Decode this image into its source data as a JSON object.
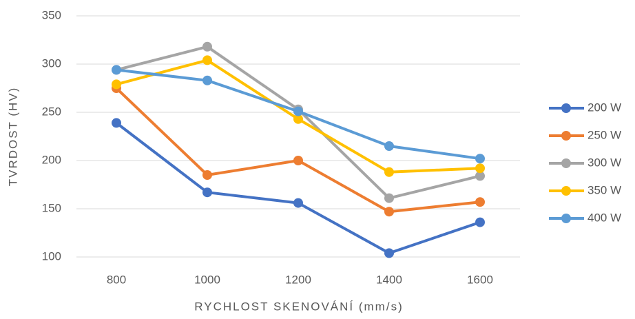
{
  "chart_data": {
    "type": "line",
    "x_label": "RYCHLOST SKENOVÁNÍ (mm/s)",
    "y_label": "TVRDOST (HV)",
    "categories": [
      "800",
      "1000",
      "1200",
      "1400",
      "1600"
    ],
    "series": [
      {
        "name": "200 W",
        "color": "#4472c4",
        "values": [
          239,
          167,
          156,
          104,
          136
        ]
      },
      {
        "name": "250 W",
        "color": "#ed7d31",
        "values": [
          275,
          185,
          200,
          147,
          157
        ]
      },
      {
        "name": "300 W",
        "color": "#a5a5a5",
        "values": [
          294,
          318,
          253,
          161,
          184
        ]
      },
      {
        "name": "350 W",
        "color": "#ffc000",
        "values": [
          279,
          304,
          243,
          188,
          192
        ]
      },
      {
        "name": "400 W",
        "color": "#5b9bd5",
        "values": [
          294,
          283,
          251,
          215,
          202
        ]
      }
    ],
    "ylim": [
      100,
      350
    ],
    "yticks": [
      100,
      150,
      200,
      250,
      300,
      350
    ],
    "grid": true,
    "legend": "right"
  }
}
